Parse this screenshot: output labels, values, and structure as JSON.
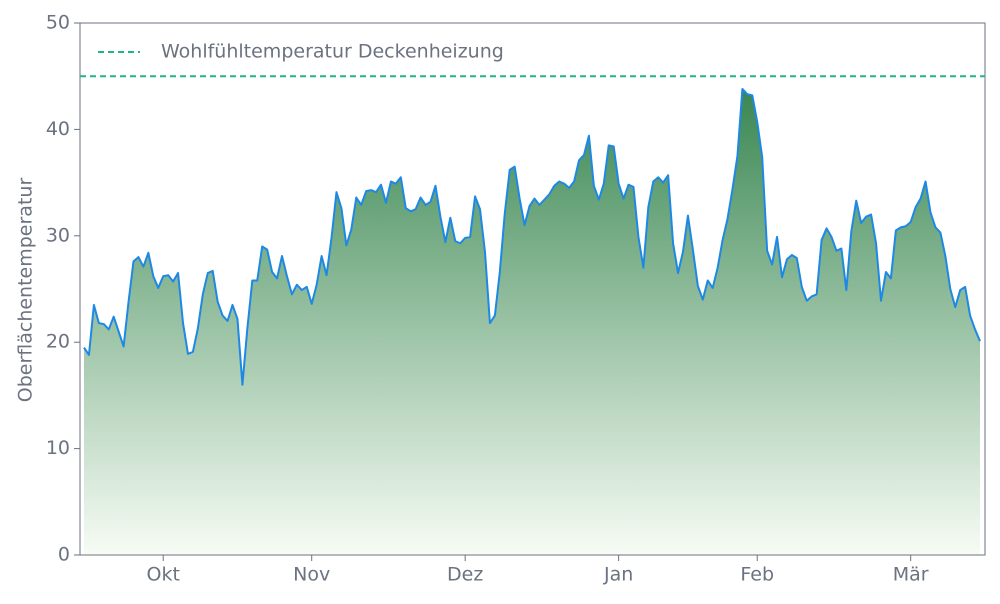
{
  "chart_data": {
    "type": "area",
    "ylabel": "Oberflächentemperatur",
    "ylim": [
      0,
      50
    ],
    "yticks": [
      0,
      10,
      20,
      30,
      40,
      50
    ],
    "categories": [
      null,
      null,
      null,
      null,
      null,
      null,
      null,
      null,
      null,
      null,
      null,
      null,
      null,
      null,
      null,
      null,
      "Okt",
      null,
      null,
      null,
      null,
      null,
      null,
      null,
      null,
      null,
      null,
      null,
      null,
      null,
      null,
      null,
      null,
      null,
      null,
      null,
      null,
      null,
      null,
      null,
      null,
      null,
      null,
      null,
      null,
      null,
      "Nov",
      null,
      null,
      null,
      null,
      null,
      null,
      null,
      null,
      null,
      null,
      null,
      null,
      null,
      null,
      null,
      null,
      null,
      null,
      null,
      null,
      null,
      null,
      null,
      null,
      null,
      null,
      null,
      null,
      null,
      null,
      "Dez",
      null,
      null,
      null,
      null,
      null,
      null,
      null,
      null,
      null,
      null,
      null,
      null,
      null,
      null,
      null,
      null,
      null,
      null,
      null,
      null,
      null,
      null,
      null,
      null,
      null,
      null,
      null,
      null,
      null,
      null,
      "Jan",
      null,
      null,
      null,
      null,
      null,
      null,
      null,
      null,
      null,
      null,
      null,
      null,
      null,
      null,
      null,
      null,
      null,
      null,
      null,
      null,
      null,
      null,
      null,
      null,
      null,
      null,
      null,
      "Feb",
      null,
      null,
      null,
      null,
      null,
      null,
      null,
      null,
      null,
      null,
      null,
      null,
      null,
      null,
      null,
      null,
      null,
      null,
      null,
      null,
      null,
      null,
      null,
      null,
      null,
      null,
      null,
      null,
      null,
      null,
      "Mär",
      null,
      null,
      null,
      null,
      null,
      null,
      null,
      null,
      null,
      null,
      null,
      null,
      null,
      null
    ],
    "values": [
      19.5,
      18.8,
      23.5,
      21.8,
      21.7,
      21.2,
      22.4,
      21,
      19.6,
      23.8,
      27.6,
      28,
      27.1,
      28.4,
      26.2,
      25.1,
      26.2,
      26.3,
      25.7,
      26.5,
      21.8,
      18.9,
      19.1,
      21.3,
      24.5,
      26.5,
      26.7,
      23.8,
      22.5,
      22,
      23.5,
      22.2,
      16,
      21.3,
      25.8,
      25.8,
      29,
      28.7,
      26.6,
      26,
      28.1,
      26.2,
      24.5,
      25.4,
      24.9,
      25.2,
      23.6,
      25.4,
      28.1,
      26.3,
      29.8,
      34.1,
      32.6,
      29.1,
      30.6,
      33.6,
      32.9,
      34.2,
      34.3,
      34.1,
      34.8,
      33.1,
      35.1,
      34.9,
      35.5,
      32.6,
      32.3,
      32.5,
      33.6,
      32.9,
      33.2,
      34.7,
      31.8,
      29.4,
      31.7,
      29.5,
      29.3,
      29.8,
      29.9,
      33.7,
      32.5,
      28.5,
      21.8,
      22.5,
      26.6,
      32.1,
      36.2,
      36.5,
      33.5,
      31,
      32.8,
      33.5,
      32.9,
      33.4,
      33.9,
      34.7,
      35.1,
      34.9,
      34.5,
      35.1,
      37.1,
      37.6,
      39.4,
      34.7,
      33.4,
      34.9,
      38.5,
      38.4,
      34.9,
      33.5,
      34.8,
      34.6,
      29.9,
      27,
      32.7,
      35.1,
      35.5,
      35,
      35.7,
      29.3,
      26.5,
      28.5,
      31.9,
      28.7,
      25.3,
      24,
      25.8,
      25.1,
      27,
      29.6,
      31.6,
      34.4,
      37.5,
      43.8,
      43.3,
      43.2,
      40.7,
      37.4,
      28.6,
      27.3,
      29.9,
      26.1,
      27.8,
      28.2,
      27.9,
      25.2,
      23.9,
      24.3,
      24.5,
      29.6,
      30.7,
      29.9,
      28.6,
      28.8,
      24.9,
      30.4,
      33.3,
      31.2,
      31.8,
      32,
      29.3,
      23.9,
      26.6,
      26,
      30.5,
      30.8,
      30.9,
      31.3,
      32.7,
      33.5,
      35.1,
      32.2,
      30.8,
      30.3,
      28.1,
      25,
      23.3,
      24.9,
      25.2,
      22.5,
      21.2,
      20.1
    ],
    "color": "#1e88e5",
    "fill_top": "#3a8752",
    "fill_bottom": "#f7fcf5",
    "reference_line": {
      "value": 45,
      "label": "Wohlfühltemperatur Deckenheizung",
      "color": "#20b486"
    }
  }
}
